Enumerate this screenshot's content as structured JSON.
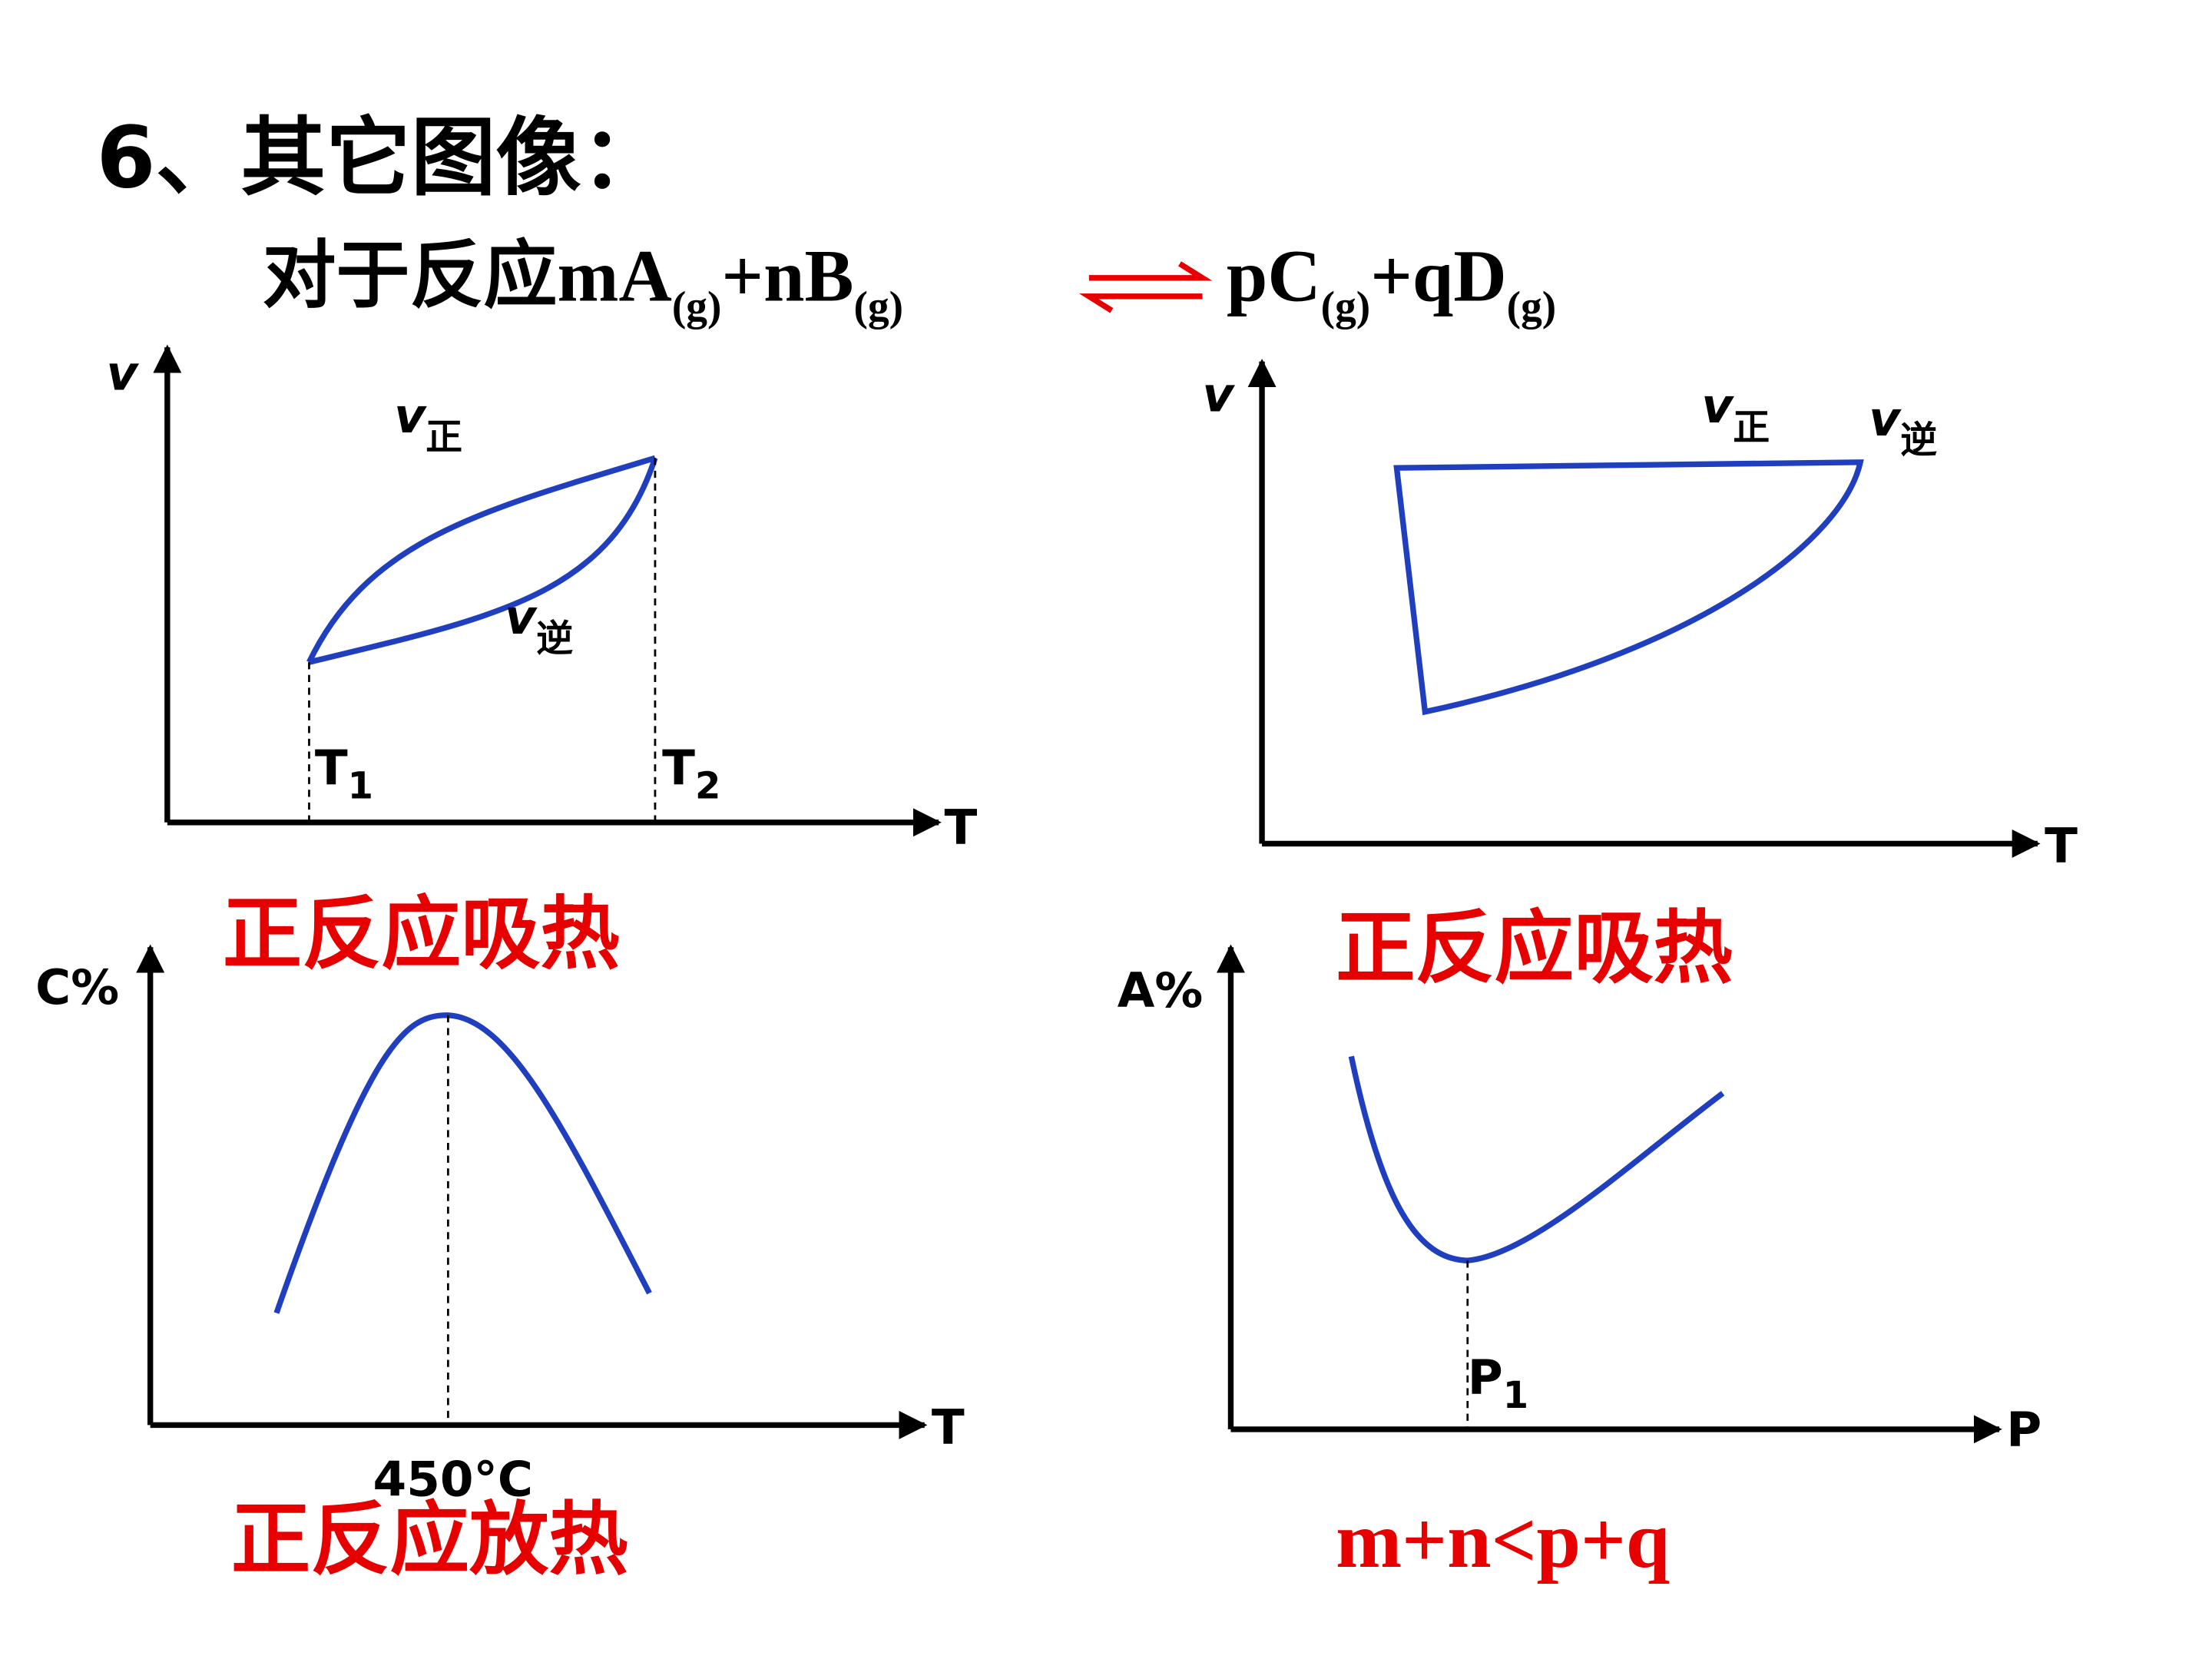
{
  "title": "6、其它图像：",
  "reaction": {
    "lhs": [
      {
        "base": "对于反应mA",
        "sub": "(g)"
      },
      {
        "base": "+nB",
        "sub": "(g)"
      }
    ],
    "rhs": [
      {
        "base": "pC",
        "sub": "(g)"
      },
      {
        "base": "+qD",
        "sub": "(g)"
      }
    ]
  },
  "panels": [
    {
      "y_axis": "v",
      "x_axis": "T",
      "labels": [
        {
          "base": "v",
          "sub": "正"
        },
        {
          "base": "v",
          "sub": "逆"
        },
        {
          "base": "T",
          "sub": "1"
        },
        {
          "base": "T",
          "sub": "2"
        }
      ],
      "conclusion": "正反应吸热"
    },
    {
      "y_axis": "v",
      "x_axis": "T",
      "labels": [
        {
          "base": "v",
          "sub": "正"
        },
        {
          "base": "v",
          "sub": "逆"
        }
      ],
      "conclusion": "正反应吸热"
    },
    {
      "y_axis": "C%",
      "x_axis": "T",
      "labels": [
        {
          "base": "450°C"
        }
      ],
      "conclusion": "正反应放热"
    },
    {
      "y_axis": "A%",
      "x_axis": "P",
      "labels": [
        {
          "base": "P",
          "sub": "1"
        }
      ],
      "conclusion": "m+n<p+q"
    }
  ]
}
